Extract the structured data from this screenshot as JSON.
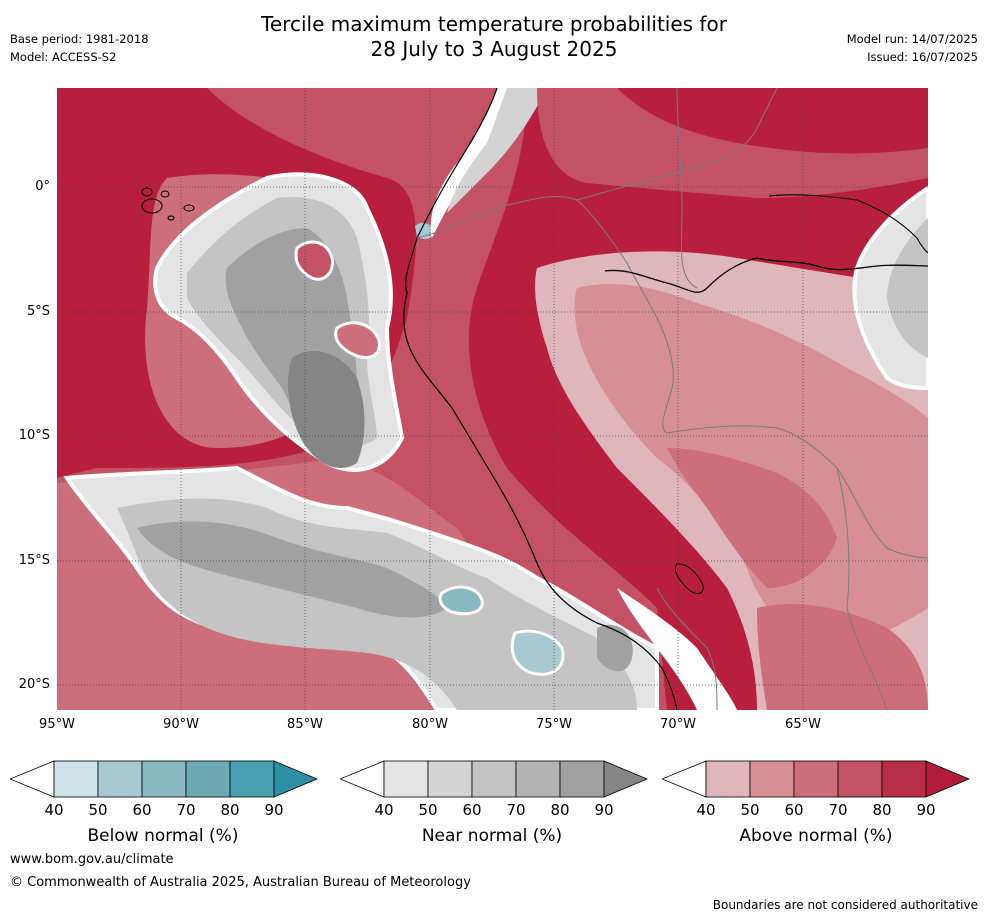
{
  "header": {
    "title_line1": "Tercile maximum temperature probabilities for",
    "title_line2": "28 July to 3 August 2025",
    "base_period": "Base period: 1981-2018",
    "model": "Model: ACCESS-S2",
    "model_run": "Model run: 14/07/2025",
    "issued": "Issued: 16/07/2025"
  },
  "map": {
    "lon_labels": [
      "95°W",
      "90°W",
      "85°W",
      "80°W",
      "75°W",
      "70°W",
      "65°W"
    ],
    "lat_labels": [
      "0°",
      "5°S",
      "10°S",
      "15°S",
      "20°S"
    ],
    "colors": {
      "above": [
        "#dfb6bb",
        "#d68f97",
        "#cd6f7b",
        "#c35364",
        "#b81f3c"
      ],
      "near": [
        "#e4e4e4",
        "#d3d3d3",
        "#c4c4c4",
        "#b3b3b3",
        "#a1a1a1",
        "#858585"
      ],
      "below": [
        "#cde3e7",
        "#a8c9cf",
        "#8ab8c3",
        "#6daab6",
        "#46a0b0"
      ]
    }
  },
  "colorbars": [
    {
      "name": "below",
      "title": "Below normal (%)",
      "ticks": [
        "40",
        "50",
        "60",
        "70",
        "80",
        "90"
      ],
      "colors": [
        "#cde3e7",
        "#a8c9cf",
        "#8ab8c3",
        "#6daab6",
        "#46a0b0",
        "#2e8ea2"
      ]
    },
    {
      "name": "near",
      "title": "Near normal (%)",
      "ticks": [
        "40",
        "50",
        "60",
        "70",
        "80",
        "90"
      ],
      "colors": [
        "#e4e4e4",
        "#d3d3d3",
        "#c4c4c4",
        "#b3b3b3",
        "#a1a1a1",
        "#858585"
      ]
    },
    {
      "name": "above",
      "title": "Above normal (%)",
      "ticks": [
        "40",
        "50",
        "60",
        "70",
        "80",
        "90"
      ],
      "colors": [
        "#dfb6bb",
        "#d68f97",
        "#cd6f7b",
        "#c35364",
        "#b72e47",
        "#b31b3a"
      ]
    }
  ],
  "footer": {
    "website": "www.bom.gov.au/climate",
    "copyright": "© Commonwealth of Australia 2025, Australian Bureau of Meteorology",
    "disclaimer": "Boundaries are not considered authoritative"
  }
}
